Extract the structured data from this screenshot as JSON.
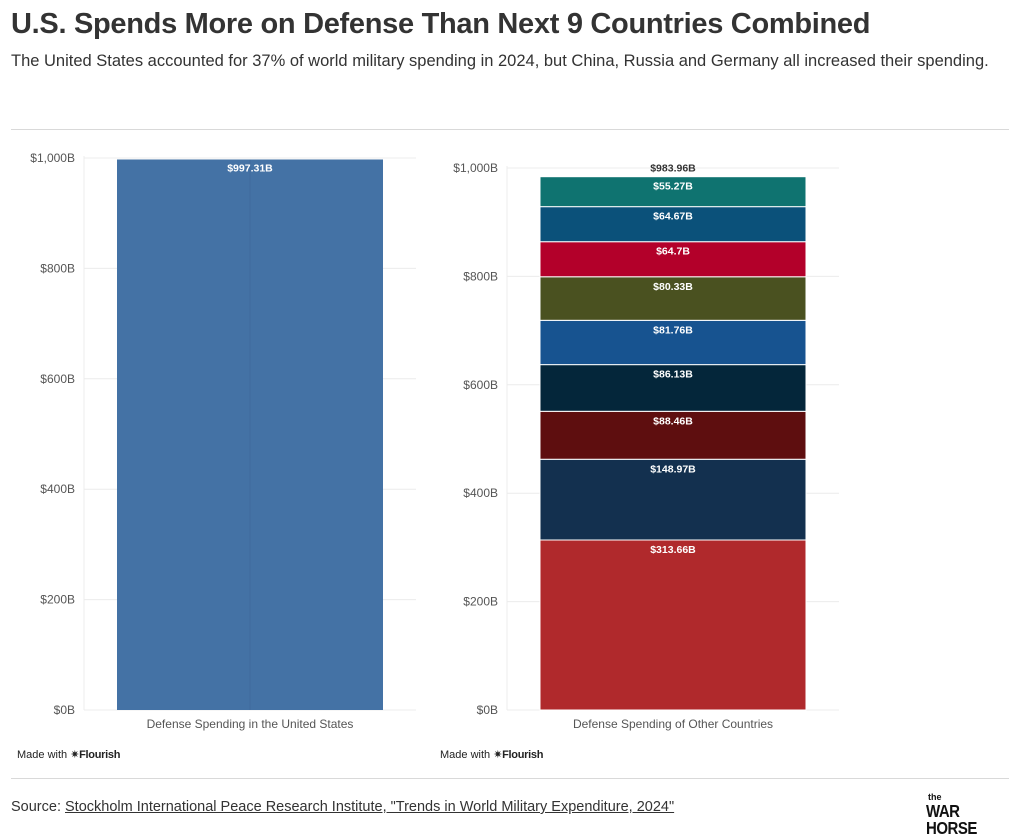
{
  "header": {
    "title": "U.S. Spends More on Defense Than Next 9 Countries Combined",
    "subtitle": "The United States accounted for 37% of world military spending in 2024, but China, Russia and Germany all increased their spending."
  },
  "footer": {
    "made_with_prefix": "Made with",
    "made_with_brand": "✷Flourish",
    "source_prefix": "Source: ",
    "source_link_text": "Stockholm International Peace Research Institute, \"Trends in World Military Expenditure, 2024\"",
    "logo_small": "the",
    "logo_name": "WAR HORSE"
  },
  "colors": {
    "us_bar": "#4472a5",
    "gridline": "#ececec",
    "axis_text": "#555555"
  },
  "chart_data": [
    {
      "type": "bar",
      "categories": [
        "Defense Spending in the United States"
      ],
      "values": [
        997.31
      ],
      "value_labels": [
        "$997.31B"
      ],
      "ylim": [
        0,
        1000
      ],
      "yticks": [
        0,
        200,
        400,
        600,
        800,
        1000
      ],
      "ytick_labels": [
        "$0B",
        "$200B",
        "$400B",
        "$600B",
        "$800B",
        "$1,000B"
      ],
      "grid": true,
      "colors": [
        "#4472a5"
      ]
    },
    {
      "type": "bar",
      "stacked": true,
      "categories": [
        "Defense Spending of Other Countries"
      ],
      "total_label": "$983.96B",
      "total": 983.96,
      "ylim": [
        0,
        1000
      ],
      "yticks": [
        0,
        200,
        400,
        600,
        800,
        1000
      ],
      "ytick_labels": [
        "$0B",
        "$200B",
        "$400B",
        "$600B",
        "$800B",
        "$1,000B"
      ],
      "grid": true,
      "segments": [
        {
          "value": 313.66,
          "label": "$313.66B",
          "color": "#b0292c"
        },
        {
          "value": 148.97,
          "label": "$148.97B",
          "color": "#13304f"
        },
        {
          "value": 88.46,
          "label": "$88.46B",
          "color": "#5e0e0f"
        },
        {
          "value": 86.13,
          "label": "$86.13B",
          "color": "#04263a"
        },
        {
          "value": 81.76,
          "label": "$81.76B",
          "color": "#175390"
        },
        {
          "value": 80.33,
          "label": "$80.33B",
          "color": "#4a5120"
        },
        {
          "value": 64.7,
          "label": "$64.7B",
          "color": "#b3002a"
        },
        {
          "value": 64.67,
          "label": "$64.67B",
          "color": "#0b517a"
        },
        {
          "value": 55.27,
          "label": "$55.27B",
          "color": "#0f7370"
        }
      ]
    }
  ]
}
